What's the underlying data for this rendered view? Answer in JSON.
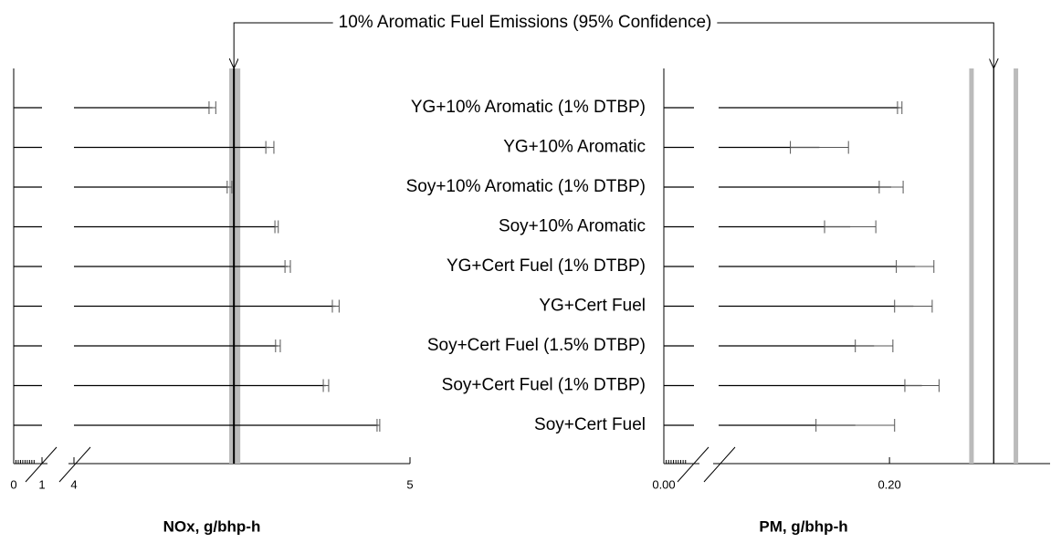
{
  "annotation": "10% Aromatic Fuel Emissions (95% Confidence)",
  "chart_data": [
    {
      "type": "errorbar",
      "x_label": "NOx, g/bhp-h",
      "categories": [
        "YG+10% Aromatic (1% DTBP)",
        "YG+10% Aromatic",
        "Soy+10% Aromatic (1% DTBP)",
        "Soy+10% Aromatic",
        "YG+Cert Fuel (1% DTBP)",
        "YG+Cert Fuel",
        "Soy+Cert Fuel (1.5% DTBP)",
        "Soy+Cert Fuel (1% DTBP)",
        "Soy+Cert Fuel"
      ],
      "values": [
        4.412,
        4.583,
        4.463,
        4.603,
        4.636,
        4.779,
        4.607,
        4.75,
        4.906
      ],
      "errors": [
        0.01,
        0.012,
        0.007,
        0.005,
        0.008,
        0.01,
        0.007,
        0.008,
        0.004
      ],
      "xlim": [
        0,
        5
      ],
      "axis_break": [
        1,
        4
      ],
      "xticks": [
        0,
        1,
        4,
        5
      ],
      "reference": {
        "value": 4.476,
        "low": 4.462,
        "high": 4.495
      },
      "reference_style": "band",
      "color": "#000000",
      "reference_color": "#bbbbbb"
    },
    {
      "type": "errorbar",
      "x_label": "PM, g/bhp-h",
      "values": [
        0.206,
        0.159,
        0.201,
        0.177,
        0.215,
        0.214,
        0.191,
        0.219,
        0.18
      ],
      "errors": [
        0.0013,
        0.017,
        0.007,
        0.015,
        0.011,
        0.011,
        0.011,
        0.01,
        0.023
      ],
      "xlim": [
        0,
        0.294
      ],
      "axis_break": [
        0.02,
        0.1
      ],
      "xticks": [
        {
          "value": 0,
          "label": "0.00"
        },
        {
          "value": 0.2,
          "label": "0.20"
        }
      ],
      "reference": {
        "value": 0.261,
        "low": 0.248,
        "high": 0.274
      },
      "reference_style": "lines",
      "color": "#000000",
      "reference_color": "#bbbbbb"
    }
  ]
}
